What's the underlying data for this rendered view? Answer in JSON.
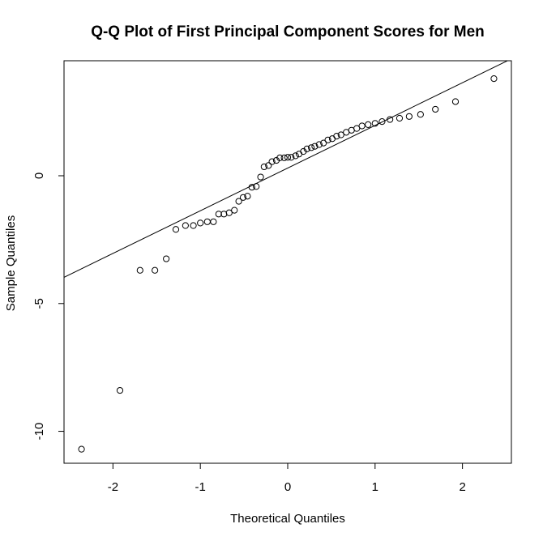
{
  "chart_data": {
    "type": "scatter",
    "title": "Q-Q Plot of First Principal Component Scores for Men",
    "xlabel": "Theoretical Quantiles",
    "ylabel": "Sample Quantiles",
    "xlim": [
      -2.56,
      2.56
    ],
    "ylim": [
      -11.25,
      4.5
    ],
    "xticks": [
      -2,
      -1,
      0,
      1,
      2
    ],
    "xtick_labels": [
      "-2",
      "-1",
      "0",
      "1",
      "2"
    ],
    "yticks": [
      -10,
      -5,
      0
    ],
    "ytick_labels": [
      "-10",
      "-5",
      "0"
    ],
    "grid": false,
    "legend": "none",
    "reference_line": {
      "intercept": 0.3,
      "slope": 1.67
    },
    "points": [
      {
        "x": -2.36,
        "y": -10.7
      },
      {
        "x": -1.92,
        "y": -8.4
      },
      {
        "x": -1.69,
        "y": -3.7
      },
      {
        "x": -1.52,
        "y": -3.7
      },
      {
        "x": -1.39,
        "y": -3.25
      },
      {
        "x": -1.28,
        "y": -2.1
      },
      {
        "x": -1.17,
        "y": -1.95
      },
      {
        "x": -1.08,
        "y": -1.95
      },
      {
        "x": -1.0,
        "y": -1.85
      },
      {
        "x": -0.92,
        "y": -1.8
      },
      {
        "x": -0.85,
        "y": -1.8
      },
      {
        "x": -0.79,
        "y": -1.5
      },
      {
        "x": -0.73,
        "y": -1.5
      },
      {
        "x": -0.67,
        "y": -1.45
      },
      {
        "x": -0.61,
        "y": -1.35
      },
      {
        "x": -0.56,
        "y": -1.0
      },
      {
        "x": -0.51,
        "y": -0.85
      },
      {
        "x": -0.46,
        "y": -0.8
      },
      {
        "x": -0.41,
        "y": -0.45
      },
      {
        "x": -0.36,
        "y": -0.42
      },
      {
        "x": -0.31,
        "y": -0.05
      },
      {
        "x": -0.27,
        "y": 0.35
      },
      {
        "x": -0.22,
        "y": 0.4
      },
      {
        "x": -0.18,
        "y": 0.55
      },
      {
        "x": -0.13,
        "y": 0.6
      },
      {
        "x": -0.09,
        "y": 0.7
      },
      {
        "x": -0.04,
        "y": 0.7
      },
      {
        "x": 0.0,
        "y": 0.72
      },
      {
        "x": 0.04,
        "y": 0.72
      },
      {
        "x": 0.09,
        "y": 0.78
      },
      {
        "x": 0.13,
        "y": 0.85
      },
      {
        "x": 0.18,
        "y": 0.95
      },
      {
        "x": 0.22,
        "y": 1.05
      },
      {
        "x": 0.27,
        "y": 1.1
      },
      {
        "x": 0.31,
        "y": 1.15
      },
      {
        "x": 0.36,
        "y": 1.22
      },
      {
        "x": 0.41,
        "y": 1.28
      },
      {
        "x": 0.46,
        "y": 1.4
      },
      {
        "x": 0.51,
        "y": 1.45
      },
      {
        "x": 0.56,
        "y": 1.55
      },
      {
        "x": 0.61,
        "y": 1.6
      },
      {
        "x": 0.67,
        "y": 1.7
      },
      {
        "x": 0.73,
        "y": 1.78
      },
      {
        "x": 0.79,
        "y": 1.85
      },
      {
        "x": 0.85,
        "y": 1.95
      },
      {
        "x": 0.92,
        "y": 2.0
      },
      {
        "x": 1.0,
        "y": 2.05
      },
      {
        "x": 1.08,
        "y": 2.12
      },
      {
        "x": 1.17,
        "y": 2.2
      },
      {
        "x": 1.28,
        "y": 2.25
      },
      {
        "x": 1.39,
        "y": 2.32
      },
      {
        "x": 1.52,
        "y": 2.4
      },
      {
        "x": 1.69,
        "y": 2.6
      },
      {
        "x": 1.92,
        "y": 2.9
      },
      {
        "x": 2.36,
        "y": 3.8
      }
    ]
  }
}
